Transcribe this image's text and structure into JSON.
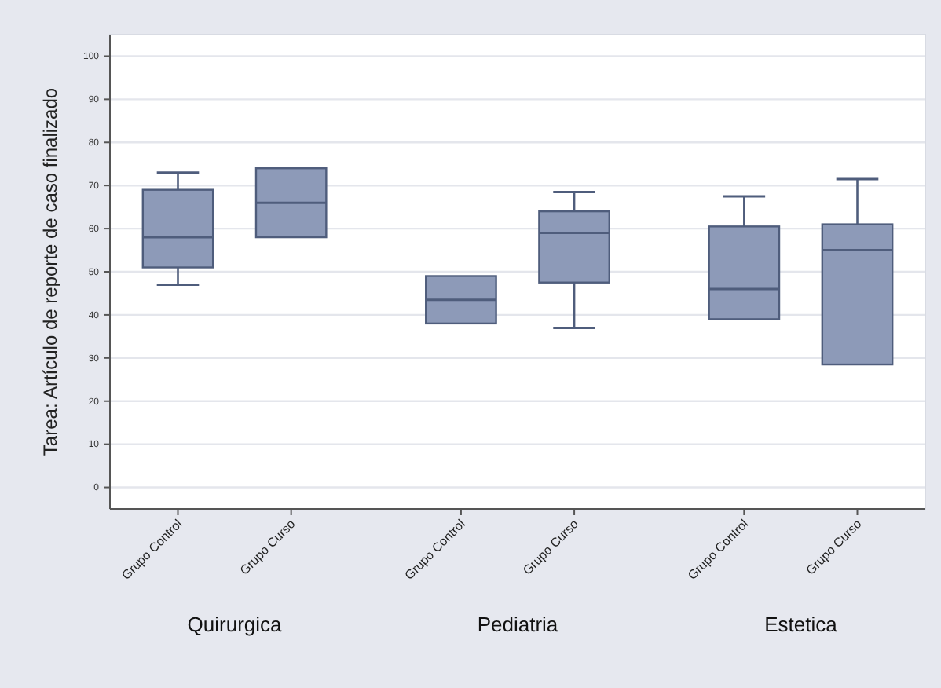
{
  "chart_data": {
    "type": "box",
    "ylabel": "Tarea: Artículo de reporte de caso finalizado",
    "categories": [
      "Grupo Control",
      "Grupo Curso",
      "Grupo Control",
      "Grupo Curso",
      "Grupo Control",
      "Grupo Curso"
    ],
    "annotations": [
      "Quirurgica",
      "Pediatria",
      "Estetica"
    ],
    "boxes": [
      {
        "low": 47,
        "q1": 51,
        "median": 58,
        "q3": 69,
        "high": 73
      },
      {
        "low": 58,
        "q1": 58,
        "median": 66,
        "q3": 74,
        "high": 74
      },
      {
        "low": 38,
        "q1": 38,
        "median": 43.5,
        "q3": 49,
        "high": 49
      },
      {
        "low": 37,
        "q1": 47.5,
        "median": 59,
        "q3": 64,
        "high": 68.5
      },
      {
        "low": 39,
        "q1": 39,
        "median": 46,
        "q3": 60.5,
        "high": 67.5
      },
      {
        "low": 28.5,
        "q1": 28.5,
        "median": 55,
        "q3": 61,
        "high": 71.5
      }
    ],
    "color": "#8d9ab8",
    "ylim": [
      -5,
      105
    ],
    "yticks": [
      0,
      10,
      20,
      30,
      40,
      50,
      60,
      70,
      80,
      90,
      100
    ],
    "grid": "y"
  }
}
